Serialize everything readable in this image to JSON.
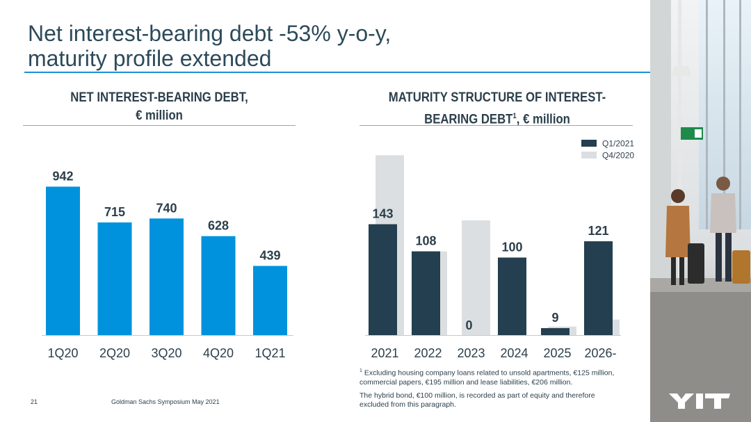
{
  "title_line1": "Net interest-bearing debt -53% y-o-y,",
  "title_line2": "maturity profile extended",
  "left_header": {
    "line1": "NET INTEREST-BEARING DEBT,",
    "line2": "€ million"
  },
  "right_header": {
    "line1": "MATURITY STRUCTURE OF INTEREST-",
    "line2_pre": "BEARING DEBT",
    "line2_sup": "1",
    "line2_post": ", € million"
  },
  "chart_data": [
    {
      "type": "bar",
      "categories": [
        "1Q20",
        "2Q20",
        "3Q20",
        "4Q20",
        "1Q21"
      ],
      "values": [
        942,
        715,
        740,
        628,
        439
      ],
      "ylim": [
        0,
        1200
      ],
      "color": "#0092dd"
    },
    {
      "type": "bar",
      "categories": [
        "2021",
        "2022",
        "2023",
        "2024",
        "2025",
        "2026-"
      ],
      "series": [
        {
          "name": "Q1/2021",
          "values": [
            143,
            108,
            0,
            100,
            9,
            121
          ],
          "color": "#243f4f"
        },
        {
          "name": "Q4/2020",
          "values": [
            232,
            108,
            148,
            0,
            11,
            20
          ],
          "color": "#dcdfe1"
        }
      ],
      "data_labels": [
        "143",
        "108",
        "0",
        "100",
        "9",
        "121"
      ],
      "legend_position": "top-right",
      "ylim": [
        0,
        260
      ]
    }
  ],
  "footnote1": {
    "sup": "1",
    "text": "Excluding housing company loans related to unsold apartments, €125 million,",
    "line2": "commercial papers, €195 million and lease liabilities, €206 million."
  },
  "footnote2": {
    "line1": "The hybrid bond, €100 million, is recorded as part of equity and therefore",
    "line2": "excluded from this paragraph."
  },
  "page_number": "21",
  "event": "Goldman Sachs Symposium May 2021",
  "logo_text": "YIT"
}
